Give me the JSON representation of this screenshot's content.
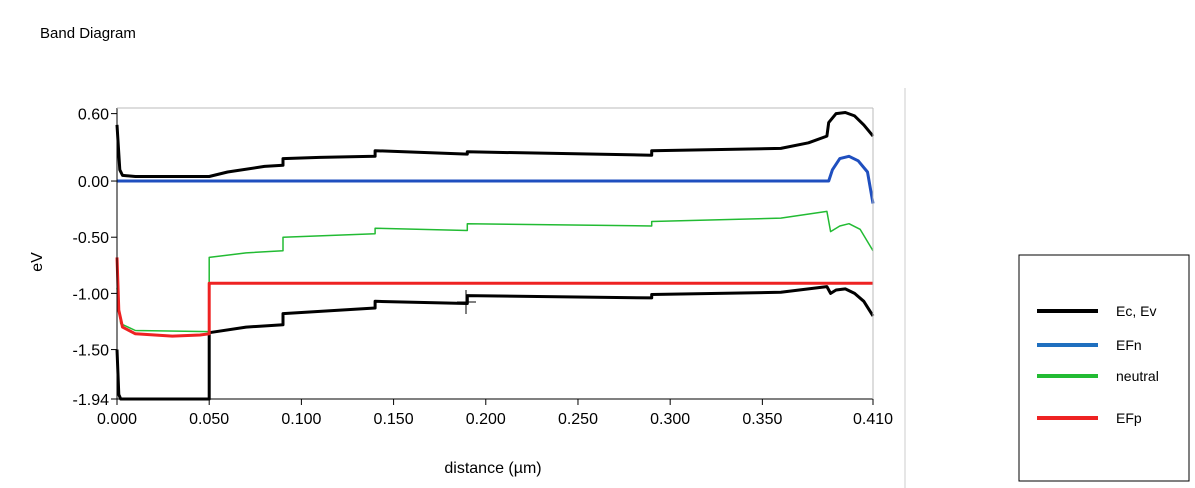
{
  "chart_data": {
    "type": "line",
    "title": "Band Diagram",
    "xlabel": "distance (µm)",
    "ylabel": "eV",
    "xlim": [
      0.0,
      0.41
    ],
    "ylim": [
      -1.94,
      0.65
    ],
    "x_ticks": [
      "0.000",
      "0.050",
      "0.100",
      "0.150",
      "0.200",
      "0.250",
      "0.300",
      "0.350",
      "0.410"
    ],
    "x_tick_values": [
      0.0,
      0.05,
      0.1,
      0.15,
      0.2,
      0.25,
      0.3,
      0.35,
      0.41
    ],
    "y_ticks": [
      "0.60",
      "0.00",
      "-0.50",
      "-1.00",
      "-1.50",
      "-1.94"
    ],
    "y_tick_values": [
      0.6,
      0.0,
      -0.5,
      -1.0,
      -1.5,
      -1.94
    ],
    "grid": false,
    "legend_position": "right",
    "legend": [
      {
        "label": "Ec, Ev",
        "color": "#000000"
      },
      {
        "label": "EFn",
        "color": "#1f6fbf"
      },
      {
        "label": "neutral",
        "color": "#22bb33"
      },
      {
        "label": "EFp",
        "color": "#ee2222"
      }
    ],
    "series": [
      {
        "name": "Ec",
        "color": "#000000",
        "width": 3,
        "points": [
          [
            0.0,
            0.5
          ],
          [
            0.0015,
            0.1
          ],
          [
            0.003,
            0.05
          ],
          [
            0.01,
            0.04
          ],
          [
            0.05,
            0.04
          ],
          [
            0.06,
            0.08
          ],
          [
            0.08,
            0.13
          ],
          [
            0.09,
            0.14
          ],
          [
            0.09,
            0.2
          ],
          [
            0.11,
            0.21
          ],
          [
            0.14,
            0.22
          ],
          [
            0.14,
            0.27
          ],
          [
            0.19,
            0.24
          ],
          [
            0.19,
            0.26
          ],
          [
            0.29,
            0.23
          ],
          [
            0.29,
            0.27
          ],
          [
            0.36,
            0.29
          ],
          [
            0.375,
            0.34
          ],
          [
            0.385,
            0.4
          ],
          [
            0.386,
            0.52
          ],
          [
            0.39,
            0.6
          ],
          [
            0.395,
            0.61
          ],
          [
            0.4,
            0.58
          ],
          [
            0.405,
            0.5
          ],
          [
            0.41,
            0.4
          ]
        ]
      },
      {
        "name": "Ev",
        "color": "#000000",
        "width": 3,
        "points": [
          [
            0.0,
            -1.5
          ],
          [
            0.001,
            -1.9
          ],
          [
            0.002,
            -1.94
          ],
          [
            0.05,
            -1.94
          ],
          [
            0.05,
            -1.35
          ],
          [
            0.07,
            -1.3
          ],
          [
            0.09,
            -1.28
          ],
          [
            0.09,
            -1.18
          ],
          [
            0.14,
            -1.13
          ],
          [
            0.14,
            -1.07
          ],
          [
            0.19,
            -1.09
          ],
          [
            0.19,
            -1.02
          ],
          [
            0.29,
            -1.04
          ],
          [
            0.29,
            -1.01
          ],
          [
            0.36,
            -0.99
          ],
          [
            0.385,
            -0.94
          ],
          [
            0.387,
            -1.0
          ],
          [
            0.39,
            -0.97
          ],
          [
            0.395,
            -0.96
          ],
          [
            0.4,
            -1.0
          ],
          [
            0.405,
            -1.07
          ],
          [
            0.41,
            -1.2
          ]
        ]
      },
      {
        "name": "EFn",
        "color": "#1f4fbf",
        "width": 3,
        "points": [
          [
            0.0,
            0.0
          ],
          [
            0.386,
            0.0
          ],
          [
            0.388,
            0.1
          ],
          [
            0.392,
            0.2
          ],
          [
            0.397,
            0.22
          ],
          [
            0.402,
            0.18
          ],
          [
            0.407,
            0.08
          ],
          [
            0.41,
            -0.2
          ]
        ]
      },
      {
        "name": "neutral",
        "color": "#22bb33",
        "width": 1.5,
        "points": [
          [
            0.0,
            -0.95
          ],
          [
            0.002,
            -1.27
          ],
          [
            0.01,
            -1.33
          ],
          [
            0.05,
            -1.34
          ],
          [
            0.05,
            -0.68
          ],
          [
            0.07,
            -0.64
          ],
          [
            0.09,
            -0.62
          ],
          [
            0.09,
            -0.5
          ],
          [
            0.14,
            -0.47
          ],
          [
            0.14,
            -0.42
          ],
          [
            0.19,
            -0.44
          ],
          [
            0.19,
            -0.38
          ],
          [
            0.29,
            -0.4
          ],
          [
            0.29,
            -0.36
          ],
          [
            0.36,
            -0.33
          ],
          [
            0.385,
            -0.27
          ],
          [
            0.387,
            -0.45
          ],
          [
            0.392,
            -0.4
          ],
          [
            0.397,
            -0.38
          ],
          [
            0.403,
            -0.43
          ],
          [
            0.41,
            -0.62
          ]
        ]
      },
      {
        "name": "EFp",
        "color": "#ee2222",
        "width": 3,
        "points": [
          [
            0.0,
            -0.68
          ],
          [
            0.001,
            -1.15
          ],
          [
            0.003,
            -1.3
          ],
          [
            0.01,
            -1.36
          ],
          [
            0.03,
            -1.38
          ],
          [
            0.045,
            -1.37
          ],
          [
            0.05,
            -1.36
          ],
          [
            0.05,
            -0.91
          ],
          [
            0.41,
            -0.91
          ]
        ]
      }
    ]
  }
}
